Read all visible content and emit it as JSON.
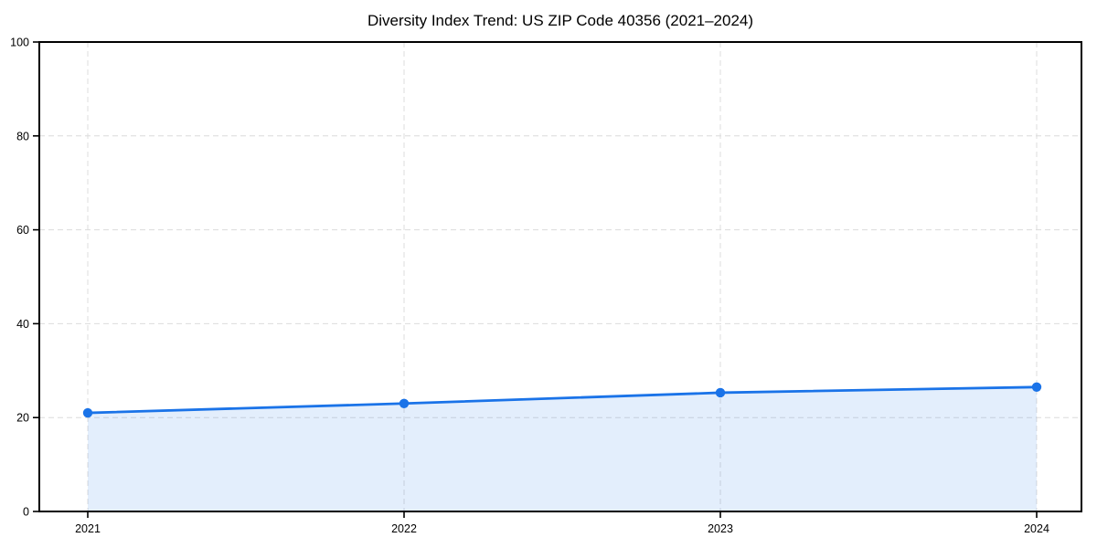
{
  "chart_data": {
    "type": "line",
    "title": "Diversity Index Trend: US ZIP Code 40356 (2021–2024)",
    "categories": [
      "2021",
      "2022",
      "2023",
      "2024"
    ],
    "series": [
      {
        "name": "Diversity Index",
        "values": [
          21,
          23,
          25.3,
          26.5
        ]
      }
    ],
    "xlabel": "",
    "ylabel": "",
    "ylim": [
      0,
      100
    ],
    "yticks": [
      0,
      20,
      40,
      60,
      80,
      100
    ],
    "grid": true,
    "grid_style": "dashed",
    "legend": "none",
    "area_fill": true,
    "marker": "circle",
    "colors": {
      "line": "#1a73e8",
      "marker": "#1a73e8",
      "area": "#1a73e8",
      "area_opacity": "0.12",
      "grid": "#dcdcdc",
      "spine": "#000000",
      "text": "#000000",
      "background": "#ffffff"
    }
  }
}
